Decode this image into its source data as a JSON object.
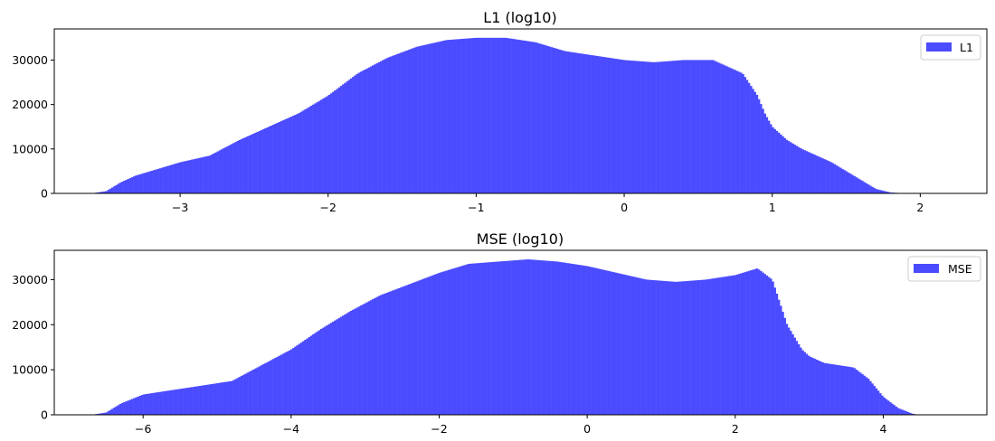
{
  "chart_data": [
    {
      "type": "bar",
      "title": "L1 (log10)",
      "xlabel": "",
      "ylabel": "",
      "color": "#4b4bff",
      "xlim": [
        -3.85,
        2.45
      ],
      "ylim": [
        0,
        37000
      ],
      "xticks": [
        -3,
        -2,
        -1,
        0,
        1,
        2
      ],
      "xtick_labels": [
        "−3",
        "−2",
        "−1",
        "0",
        "1",
        "2"
      ],
      "yticks": [
        0,
        10000,
        20000,
        30000
      ],
      "ytick_labels": [
        "0",
        "10000",
        "20000",
        "30000"
      ],
      "legend": {
        "position": "upper right",
        "entries": [
          "L1"
        ]
      },
      "series": [
        {
          "name": "L1",
          "x": [
            -3.6,
            -3.5,
            -3.4,
            -3.3,
            -3.2,
            -3.0,
            -2.8,
            -2.6,
            -2.5,
            -2.4,
            -2.2,
            -2.0,
            -1.8,
            -1.6,
            -1.4,
            -1.2,
            -1.0,
            -0.8,
            -0.6,
            -0.4,
            -0.2,
            0.0,
            0.2,
            0.4,
            0.6,
            0.8,
            0.9,
            0.95,
            1.0,
            1.1,
            1.2,
            1.3,
            1.4,
            1.5,
            1.6,
            1.7,
            1.8,
            1.9
          ],
          "y": [
            0,
            500,
            2500,
            4000,
            5000,
            7000,
            8500,
            12000,
            13500,
            15000,
            18000,
            22000,
            27000,
            30500,
            33000,
            34500,
            35000,
            35000,
            34000,
            32000,
            31000,
            30000,
            29500,
            30000,
            30000,
            27000,
            22000,
            18000,
            15000,
            12000,
            10000,
            8500,
            7000,
            5000,
            3000,
            1000,
            200,
            0
          ]
        }
      ]
    },
    {
      "type": "bar",
      "title": "MSE (log10)",
      "xlabel": "",
      "ylabel": "",
      "color": "#4b4bff",
      "xlim": [
        -7.2,
        5.4
      ],
      "ylim": [
        0,
        36500
      ],
      "xticks": [
        -6,
        -4,
        -2,
        0,
        2,
        4
      ],
      "xtick_labels": [
        "−6",
        "−4",
        "−2",
        "0",
        "2",
        "4"
      ],
      "yticks": [
        0,
        10000,
        20000,
        30000
      ],
      "ytick_labels": [
        "0",
        "10000",
        "20000",
        "30000"
      ],
      "legend": {
        "position": "upper right",
        "entries": [
          "MSE"
        ]
      },
      "series": [
        {
          "name": "MSE",
          "x": [
            -6.7,
            -6.5,
            -6.3,
            -6.0,
            -5.6,
            -5.2,
            -4.8,
            -4.4,
            -4.0,
            -3.6,
            -3.2,
            -2.8,
            -2.4,
            -2.0,
            -1.6,
            -1.2,
            -0.8,
            -0.4,
            0.0,
            0.4,
            0.8,
            1.2,
            1.6,
            2.0,
            2.3,
            2.5,
            2.7,
            2.9,
            3.0,
            3.2,
            3.4,
            3.6,
            3.8,
            4.0,
            4.2,
            4.4,
            4.5
          ],
          "y": [
            0,
            500,
            2500,
            4500,
            5500,
            6500,
            7500,
            11000,
            14500,
            19000,
            23000,
            26500,
            29000,
            31500,
            33500,
            34000,
            34500,
            34000,
            33000,
            31500,
            30000,
            29500,
            30000,
            31000,
            32500,
            30000,
            20000,
            14500,
            13000,
            11500,
            11000,
            10500,
            8000,
            4000,
            1500,
            200,
            0
          ]
        }
      ]
    }
  ]
}
